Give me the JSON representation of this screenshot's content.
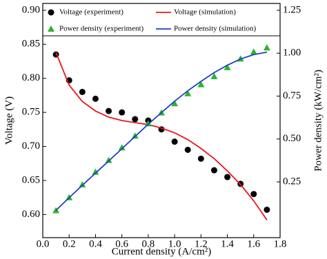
{
  "chart_data": {
    "type": "line",
    "x_label": "Current density (A/cm²)",
    "y_label": "Voltage (V)",
    "y2_label": "Power density (kW/cm²)",
    "x": [
      0.1,
      0.2,
      0.3,
      0.4,
      0.5,
      0.6,
      0.7,
      0.8,
      0.9,
      1.0,
      1.1,
      1.2,
      1.3,
      1.4,
      1.5,
      1.6,
      1.7
    ],
    "series": [
      {
        "name": "Voltage (experiment)",
        "kind": "scatter",
        "marker": "circle",
        "color": "#000000",
        "values": [
          0.835,
          0.797,
          0.78,
          0.77,
          0.752,
          0.75,
          0.74,
          0.738,
          0.725,
          0.707,
          0.695,
          0.682,
          0.665,
          0.655,
          0.645,
          0.63,
          0.607
        ]
      },
      {
        "name": "Voltage (simulation)",
        "kind": "line",
        "color": "#e8161b",
        "values": [
          0.838,
          0.79,
          0.766,
          0.752,
          0.743,
          0.738,
          0.735,
          0.732,
          0.727,
          0.72,
          0.71,
          0.697,
          0.682,
          0.664,
          0.644,
          0.62,
          0.592
        ]
      },
      {
        "name": "Power density (experiment)",
        "kind": "scatter",
        "marker": "triangle",
        "color": "#2bb52b",
        "axis": "y2",
        "values": [
          0.0835,
          0.159,
          0.234,
          0.308,
          0.376,
          0.45,
          0.518,
          0.59,
          0.653,
          0.707,
          0.765,
          0.818,
          0.865,
          0.917,
          0.968,
          1.008,
          1.032
        ]
      },
      {
        "name": "Power density (simulation)",
        "kind": "line",
        "color": "#1f3fc4",
        "axis": "y2",
        "values": [
          0.084,
          0.158,
          0.23,
          0.301,
          0.372,
          0.443,
          0.515,
          0.586,
          0.654,
          0.72,
          0.781,
          0.836,
          0.887,
          0.93,
          0.966,
          0.992,
          1.006
        ]
      }
    ],
    "xlim": [
      0,
      1.8
    ],
    "xticks": [
      {
        "value": 0,
        "label": "0.0"
      },
      0.2,
      0.4,
      0.6,
      0.8,
      {
        "value": 1,
        "label": "1.0"
      },
      1.2,
      1.4,
      1.6,
      1.8
    ],
    "ylim": [
      0.566,
      0.91
    ],
    "yticks": [
      {
        "value": 0.6,
        "label": "0.60"
      },
      0.65,
      {
        "value": 0.7,
        "label": "0.70"
      },
      0.75,
      {
        "value": 0.8,
        "label": "0.80"
      },
      0.85,
      {
        "value": 0.9,
        "label": "0.90"
      }
    ],
    "y2lim": [
      -0.075,
      1.29
    ],
    "y2ticks": [
      0.25,
      {
        "value": 0.5,
        "label": "0.50"
      },
      0.75,
      {
        "value": 1,
        "label": "1.00"
      },
      1.25
    ]
  }
}
